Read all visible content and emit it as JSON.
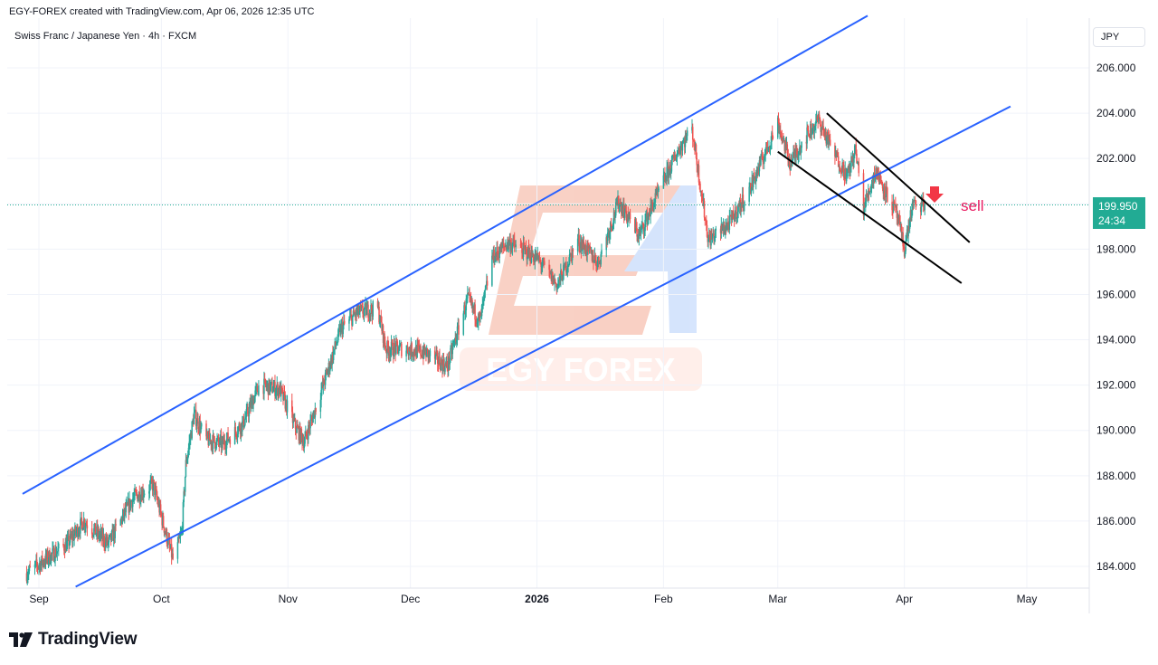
{
  "header": {
    "attribution": "EGY-FOREX created with TradingView.com, Apr 06, 2026 12:35 UTC"
  },
  "symbol": {
    "title": "Swiss Franc / Japanese Yen · 4h · FXCM"
  },
  "currency_button": "JPY",
  "price_label": {
    "price": "199.950",
    "countdown": "24:34"
  },
  "annotation": {
    "text": "sell"
  },
  "watermark": {
    "text": "EGY FOREX"
  },
  "logo": {
    "text": "TradingView"
  },
  "colors": {
    "up": "#26a69a",
    "down": "#ef5350",
    "channel": "#2962ff",
    "wedge": "#000000",
    "sell": "#e91e63",
    "price_line": "#22ab94"
  },
  "chart_data": {
    "type": "candlestick",
    "title": "Swiss Franc / Japanese Yen · 4h · FXCM",
    "y_ticks": [
      "184.000",
      "186.000",
      "188.000",
      "190.000",
      "192.000",
      "194.000",
      "196.000",
      "198.000",
      "200.000",
      "202.000",
      "204.000",
      "206.000"
    ],
    "ylim": [
      183.2,
      208.2
    ],
    "x_ticks": [
      "Sep",
      "Oct",
      "Nov",
      "Dec",
      "2026",
      "Feb",
      "Mar",
      "Apr",
      "May"
    ],
    "x_tick_dates": [
      "2025-09-01",
      "2025-10-01",
      "2025-11-01",
      "2025-12-01",
      "2026-01-01",
      "2026-02-01",
      "2026-03-01",
      "2026-04-01",
      "2026-05-01"
    ],
    "current_price": 199.95,
    "approx_close_path": [
      {
        "date": "2025-08-29",
        "close": 183.7
      },
      {
        "date": "2025-09-08",
        "close": 185.0
      },
      {
        "date": "2025-09-12",
        "close": 186.0
      },
      {
        "date": "2025-09-18",
        "close": 185.0
      },
      {
        "date": "2025-09-24",
        "close": 187.0
      },
      {
        "date": "2025-09-29",
        "close": 187.6
      },
      {
        "date": "2025-10-02",
        "close": 185.5
      },
      {
        "date": "2025-10-04",
        "close": 184.2
      },
      {
        "date": "2025-10-06",
        "close": 185.5
      },
      {
        "date": "2025-10-07",
        "close": 188.5
      },
      {
        "date": "2025-10-09",
        "close": 190.7
      },
      {
        "date": "2025-10-12",
        "close": 189.6
      },
      {
        "date": "2025-10-16",
        "close": 189.4
      },
      {
        "date": "2025-10-21",
        "close": 190.3
      },
      {
        "date": "2025-10-25",
        "close": 192.0
      },
      {
        "date": "2025-10-30",
        "close": 191.8
      },
      {
        "date": "2025-11-03",
        "close": 190.1
      },
      {
        "date": "2025-11-05",
        "close": 189.5
      },
      {
        "date": "2025-11-10",
        "close": 192.2
      },
      {
        "date": "2025-11-14",
        "close": 194.5
      },
      {
        "date": "2025-11-18",
        "close": 195.2
      },
      {
        "date": "2025-11-23",
        "close": 195.4
      },
      {
        "date": "2025-11-25",
        "close": 193.6
      },
      {
        "date": "2025-11-30",
        "close": 193.6
      },
      {
        "date": "2025-12-05",
        "close": 193.4
      },
      {
        "date": "2025-12-10",
        "close": 192.8
      },
      {
        "date": "2025-12-15",
        "close": 195.8
      },
      {
        "date": "2025-12-18",
        "close": 194.8
      },
      {
        "date": "2025-12-21",
        "close": 197.6
      },
      {
        "date": "2025-12-25",
        "close": 198.3
      },
      {
        "date": "2026-01-01",
        "close": 197.6
      },
      {
        "date": "2026-01-06",
        "close": 196.4
      },
      {
        "date": "2026-01-11",
        "close": 198.4
      },
      {
        "date": "2026-01-16",
        "close": 197.4
      },
      {
        "date": "2026-01-21",
        "close": 200.1
      },
      {
        "date": "2026-01-26",
        "close": 198.6
      },
      {
        "date": "2026-01-31",
        "close": 200.6
      },
      {
        "date": "2026-02-05",
        "close": 202.5
      },
      {
        "date": "2026-02-08",
        "close": 203.3
      },
      {
        "date": "2026-02-12",
        "close": 198.4
      },
      {
        "date": "2026-02-17",
        "close": 199.1
      },
      {
        "date": "2026-02-22",
        "close": 200.6
      },
      {
        "date": "2026-02-26",
        "close": 202.3
      },
      {
        "date": "2026-03-01",
        "close": 203.6
      },
      {
        "date": "2026-03-04",
        "close": 201.8
      },
      {
        "date": "2026-03-08",
        "close": 203.0
      },
      {
        "date": "2026-03-11",
        "close": 203.7
      },
      {
        "date": "2026-03-14",
        "close": 202.5
      },
      {
        "date": "2026-03-18",
        "close": 201.2
      },
      {
        "date": "2026-03-20",
        "close": 202.4
      },
      {
        "date": "2026-03-22",
        "close": 199.8
      },
      {
        "date": "2026-03-25",
        "close": 201.5
      },
      {
        "date": "2026-03-28",
        "close": 200.3
      },
      {
        "date": "2026-03-30",
        "close": 199.6
      },
      {
        "date": "2026-04-01",
        "close": 198.0
      },
      {
        "date": "2026-04-03",
        "close": 199.9
      },
      {
        "date": "2026-04-06",
        "close": 199.95
      }
    ],
    "drawings": {
      "ascending_channel_upper": {
        "from": {
          "date": "2025-08-28",
          "price": 187.2
        },
        "to": {
          "date": "2026-03-23",
          "price": 208.3
        }
      },
      "ascending_channel_lower": {
        "from": {
          "date": "2025-09-10",
          "price": 183.1
        },
        "to": {
          "date": "2026-04-27",
          "price": 204.3
        }
      },
      "descending_channel_upper": {
        "from": {
          "date": "2026-03-13",
          "price": 204.0
        },
        "to": {
          "date": "2026-04-17",
          "price": 198.3
        }
      },
      "descending_channel_lower": {
        "from": {
          "date": "2026-03-01",
          "price": 202.3
        },
        "to": {
          "date": "2026-04-15",
          "price": 196.5
        }
      }
    }
  }
}
